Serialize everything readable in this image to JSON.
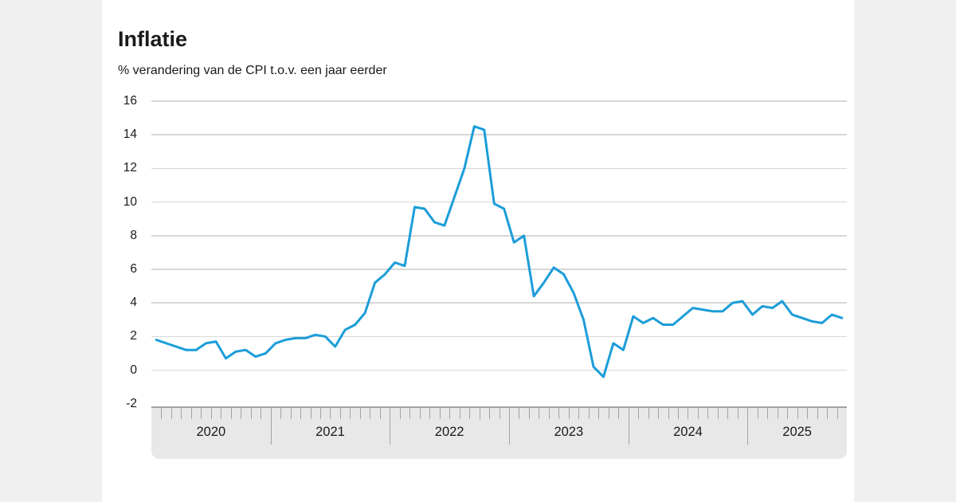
{
  "header": {
    "title": "Inflatie",
    "subtitle": "% verandering van de CPI t.o.v. een jaar eerder"
  },
  "chart_data": {
    "type": "line",
    "title": "Inflatie",
    "subtitle": "% verandering van de CPI t.o.v. een jaar eerder",
    "xlabel": "",
    "ylabel": "% verandering van de CPI t.o.v. een jaar eerder",
    "ylim": [
      -2,
      16
    ],
    "y_ticks": [
      16,
      14,
      12,
      10,
      8,
      6,
      4,
      2,
      0,
      -2
    ],
    "grid": true,
    "legend": "none",
    "line_color": "#1b9dd9",
    "x_unit": "month",
    "x_start": "2020-01",
    "x_end": "2025-10",
    "years": [
      {
        "label": "2020",
        "months": 12
      },
      {
        "label": "2021",
        "months": 12
      },
      {
        "label": "2022",
        "months": 12
      },
      {
        "label": "2023",
        "months": 12
      },
      {
        "label": "2024",
        "months": 12
      },
      {
        "label": "2025",
        "months": 10
      }
    ],
    "series": [
      {
        "name": "Inflatie (CPI)",
        "values": [
          1.8,
          1.6,
          1.4,
          1.2,
          1.2,
          1.6,
          1.7,
          0.7,
          1.1,
          1.2,
          0.8,
          1.0,
          1.6,
          1.8,
          1.9,
          1.9,
          2.1,
          2.0,
          1.4,
          2.4,
          2.7,
          3.4,
          5.2,
          5.7,
          6.4,
          6.2,
          9.7,
          9.6,
          8.8,
          8.6,
          10.3,
          12.0,
          14.5,
          14.3,
          9.9,
          9.6,
          7.6,
          8.0,
          4.4,
          5.2,
          6.1,
          5.7,
          4.6,
          3.0,
          0.2,
          -0.4,
          1.6,
          1.2,
          3.2,
          2.8,
          3.1,
          2.7,
          2.7,
          3.2,
          3.7,
          3.6,
          3.5,
          3.5,
          4.0,
          4.1,
          3.3,
          3.8,
          3.7,
          4.1,
          3.3,
          3.1,
          2.9,
          2.8,
          3.3,
          3.1
        ]
      }
    ],
    "colors": {
      "page_background": "#f0f0f0",
      "card_background": "#ffffff",
      "gridline": "#d7d7d7",
      "axis_band_fill": "#e8e8e8",
      "axis_band_border": "#a3a3a3",
      "text": "#1a1a1a"
    }
  }
}
